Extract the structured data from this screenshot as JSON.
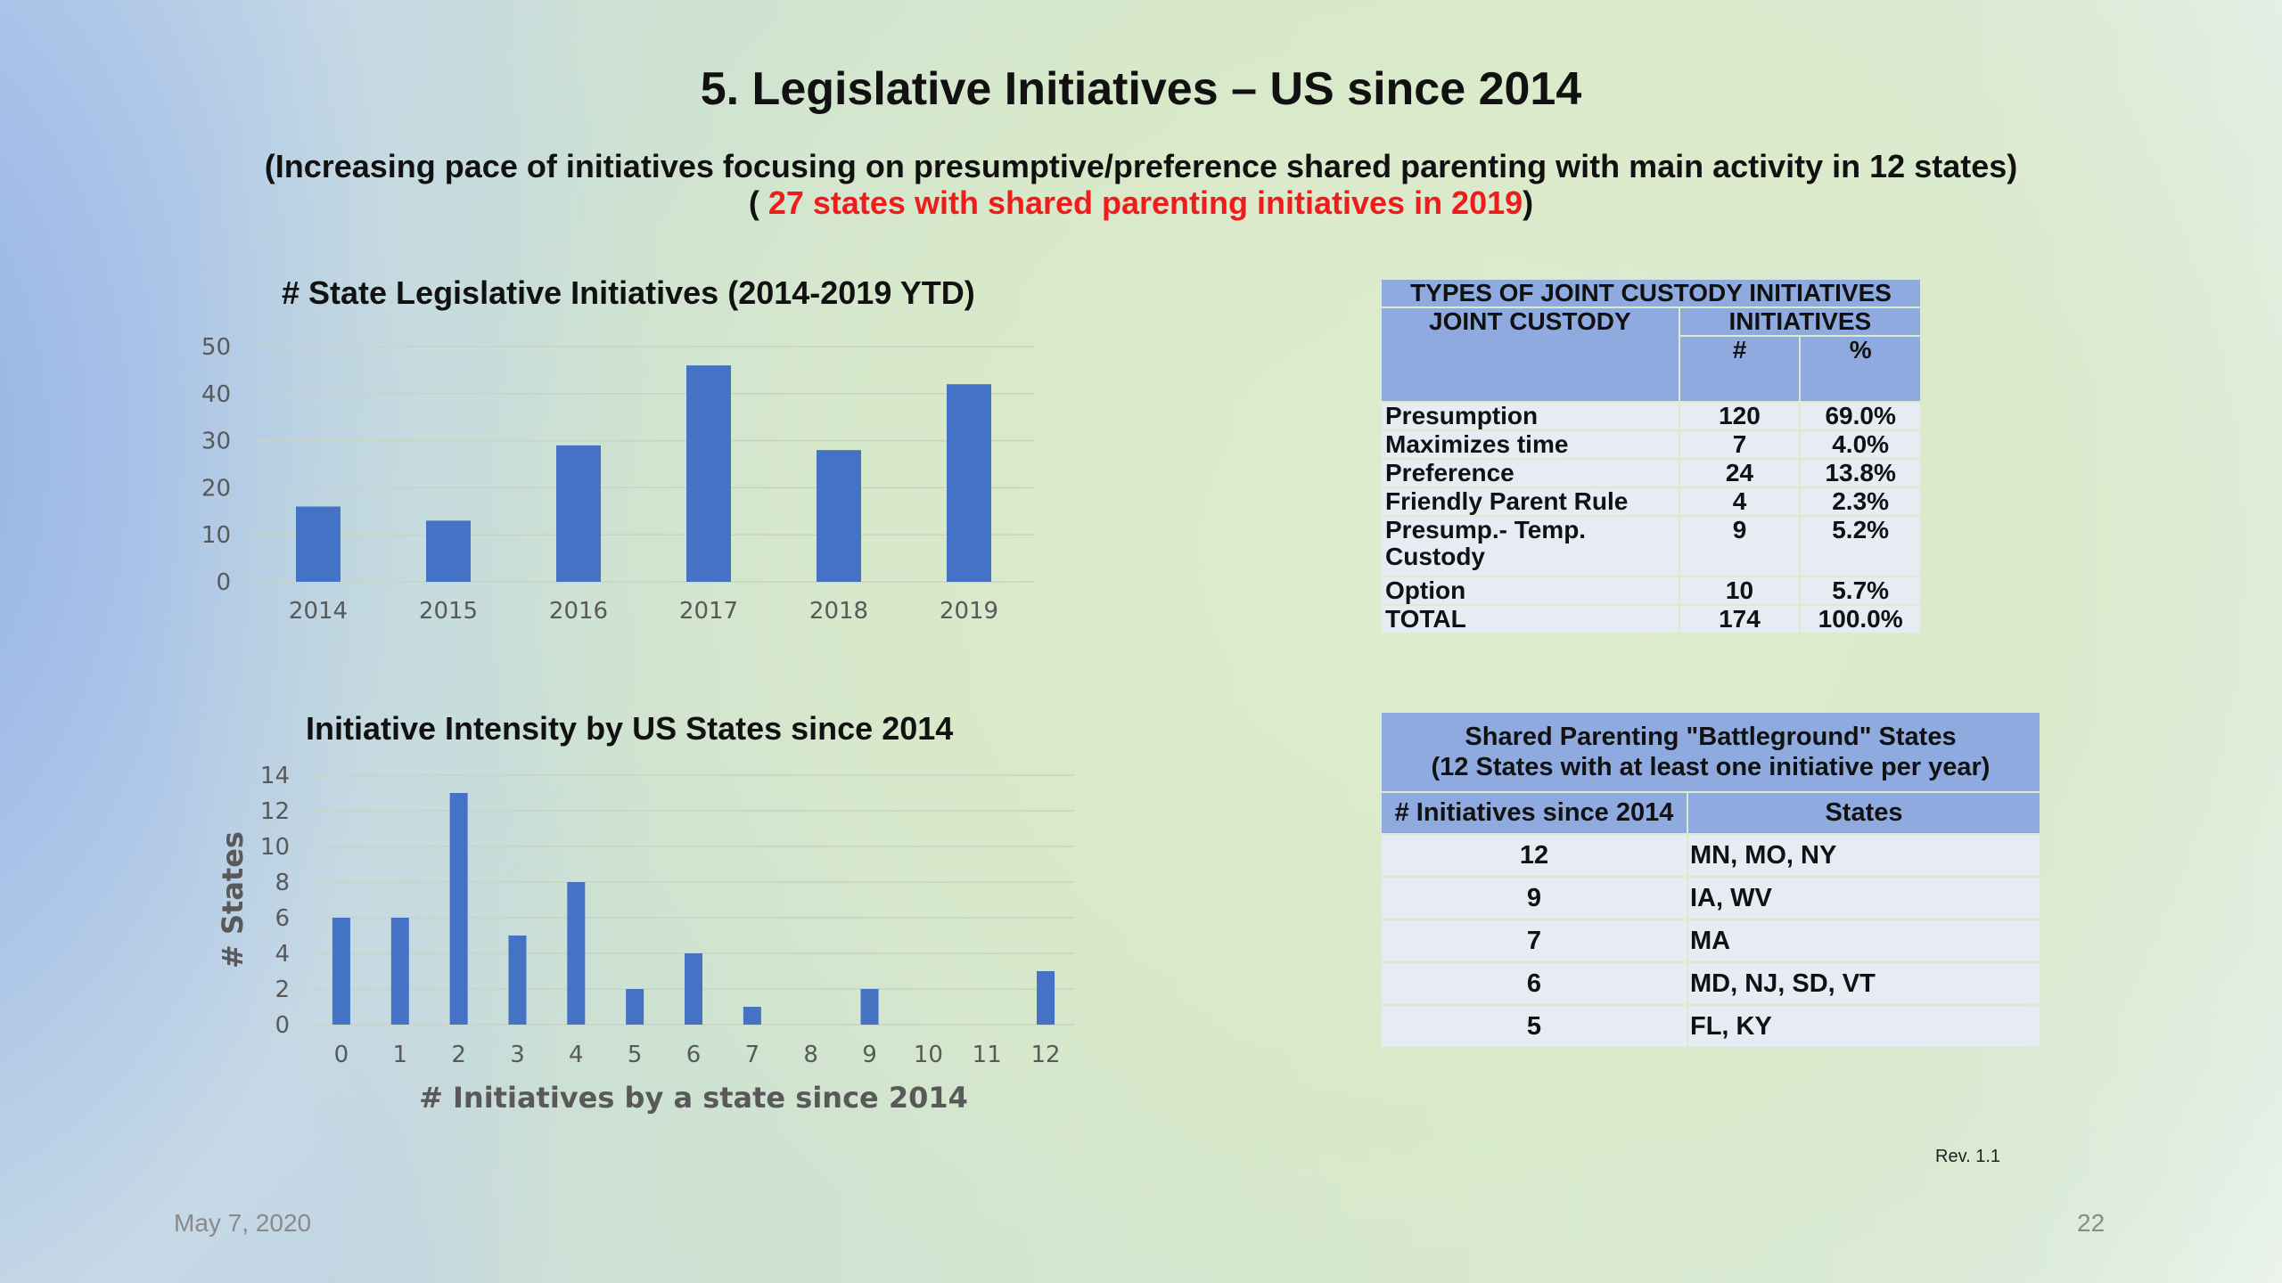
{
  "title": "5. Legislative Initiatives – US since 2014",
  "subtitle_line1": "(Increasing pace of initiatives focusing on presumptive/preference shared parenting with main activity in 12 states)",
  "subtitle_line2_pre": "( ",
  "subtitle_line2_red": "27 states with shared parenting initiatives in 2019",
  "subtitle_line2_post": ")",
  "chart_data": [
    {
      "type": "bar",
      "title": "# State Legislative Initiatives (2014-2019 YTD)",
      "categories": [
        "2014",
        "2015",
        "2016",
        "2017",
        "2018",
        "2019"
      ],
      "values": [
        16,
        13,
        29,
        46,
        28,
        42
      ],
      "yticks": [
        0,
        10,
        20,
        30,
        40,
        50
      ],
      "ylim": [
        0,
        50
      ],
      "xlabel": "",
      "ylabel": "",
      "grid": true,
      "color": "#4472c4"
    },
    {
      "type": "bar",
      "title": "Initiative Intensity by US States since 2014",
      "categories": [
        "0",
        "1",
        "2",
        "3",
        "4",
        "5",
        "6",
        "7",
        "8",
        "9",
        "10",
        "11",
        "12"
      ],
      "values": [
        6,
        6,
        13,
        5,
        8,
        2,
        4,
        1,
        0,
        2,
        0,
        0,
        3
      ],
      "yticks": [
        0,
        2,
        4,
        6,
        8,
        10,
        12,
        14
      ],
      "ylim": [
        0,
        14
      ],
      "xlabel": "# Initiatives by a state since 2014",
      "ylabel": "# States",
      "grid": true,
      "color": "#4472c4"
    }
  ],
  "custody_table": {
    "title": "TYPES OF JOINT CUSTODY INITIATIVES",
    "col_header": "JOINT CUSTODY",
    "group_header": "INITIATIVES",
    "num_header": "#",
    "pct_header": "%",
    "rows": [
      {
        "type": "Presumption",
        "count": "120",
        "pct": "69.0%"
      },
      {
        "type": "Maximizes time",
        "count": "7",
        "pct": "4.0%"
      },
      {
        "type": "Preference",
        "count": "24",
        "pct": "13.8%"
      },
      {
        "type": "Friendly Parent Rule",
        "count": "4",
        "pct": "2.3%"
      },
      {
        "type": "Presump.- Temp. Custody",
        "count": "9",
        "pct": "5.2%"
      },
      {
        "type": "Option",
        "count": "10",
        "pct": "5.7%"
      },
      {
        "type": "TOTAL",
        "count": "174",
        "pct": "100.0%"
      }
    ]
  },
  "battleground_table": {
    "title_line1": "Shared Parenting \"Battleground\" States",
    "title_line2": "(12 States with at least one initiative per year)",
    "col1": "# Initiatives since 2014",
    "col2": "States",
    "rows": [
      {
        "count": "12",
        "states": "MN,  MO, NY"
      },
      {
        "count": "9",
        "states": "IA, WV"
      },
      {
        "count": "7",
        "states": "MA"
      },
      {
        "count": "6",
        "states": "MD, NJ, SD, VT"
      },
      {
        "count": "5",
        "states": "FL, KY"
      }
    ]
  },
  "revision": "Rev.  1.1",
  "date": "May 7, 2020",
  "page_number": "22"
}
